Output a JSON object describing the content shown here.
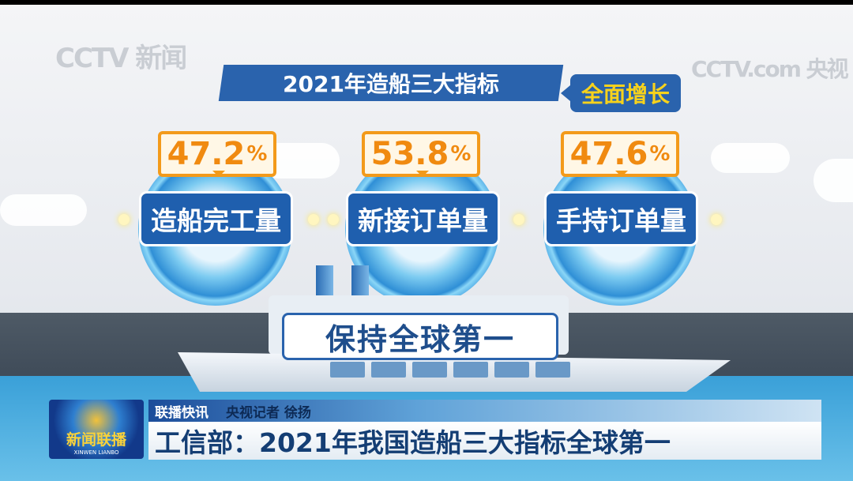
{
  "watermarks": {
    "left": "CCTV 新闻",
    "right": "CCTV.com 央视"
  },
  "title": "2021年造船三大指标",
  "tag": "全面增长",
  "indicators": [
    {
      "value": "47.2",
      "unit": "%",
      "label": "造船完工量"
    },
    {
      "value": "53.8",
      "unit": "%",
      "label": "新接订单量"
    },
    {
      "value": "47.6",
      "unit": "%",
      "label": "手持订单量"
    }
  ],
  "ship_banner": "保持全球第一",
  "lower_third": {
    "logo_cn": "新闻联播",
    "logo_en": "XINWEN LIANBO",
    "segment": "联播快讯",
    "reporter": "央视记者 徐扬",
    "headline": "工信部：2021年我国造船三大指标全球第一"
  },
  "colors": {
    "brand_blue": "#2a63ad",
    "accent_orange": "#f39a1a",
    "accent_yellow": "#f7d21c"
  }
}
